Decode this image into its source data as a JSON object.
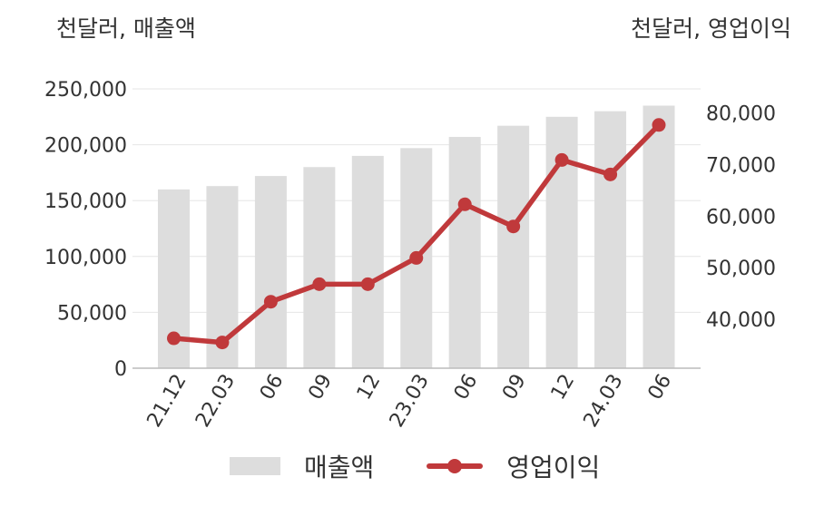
{
  "left_unit_label": "천달러, 매출액",
  "right_unit_label": "천달러, 영업이익",
  "legend": {
    "bar_label": "매출액",
    "line_label": "영업이익"
  },
  "colors": {
    "bar": "#dddddd",
    "line": "#c0393b",
    "grid": "#e6e6e6",
    "axis": "#bbbbbb",
    "text": "#333333"
  },
  "chart_data": {
    "type": "bar",
    "categories": [
      "21.12",
      "22.03",
      "06",
      "09",
      "12",
      "23.03",
      "06",
      "09",
      "12",
      "24.03",
      "06"
    ],
    "series": [
      {
        "name": "매출액",
        "type": "bar",
        "axis": "left",
        "values": [
          160000,
          163000,
          172000,
          180000,
          190000,
          197000,
          207000,
          217000,
          225000,
          230000,
          235000
        ]
      },
      {
        "name": "영업이익",
        "type": "line",
        "axis": "right",
        "values": [
          36300,
          35500,
          43400,
          46800,
          46800,
          51900,
          62300,
          58000,
          70900,
          68100,
          77700
        ]
      }
    ],
    "left_axis": {
      "min": 0,
      "max": 250000,
      "ticks": [
        0,
        50000,
        100000,
        150000,
        200000,
        250000
      ],
      "tick_labels": [
        "0",
        "50,000",
        "100,000",
        "150,000",
        "200,000",
        "250,000"
      ]
    },
    "right_axis": {
      "min": 30500,
      "max": 84700,
      "ticks": [
        40000,
        50000,
        60000,
        70000,
        80000
      ],
      "tick_labels": [
        "40,000",
        "50,000",
        "60,000",
        "70,000",
        "80,000"
      ]
    },
    "grid": true,
    "legend_position": "bottom"
  }
}
